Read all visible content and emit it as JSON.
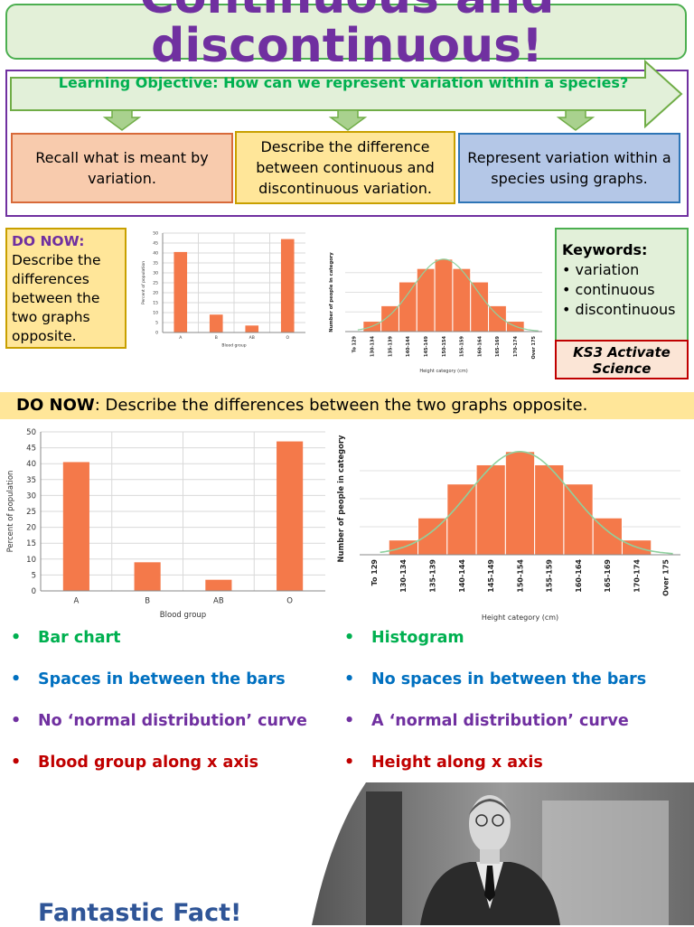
{
  "title": "Continuous and discontinuous!",
  "learning_objective": "Learning Objective: How can we represent variation within a species?",
  "objectives": [
    "Recall what is meant by variation.",
    "Describe the difference between continuous and discontinuous variation.",
    "Represent variation within a species using graphs."
  ],
  "do_now_small": {
    "label": "DO NOW",
    "colon": ":",
    "text": "Describe the differences between the two graphs opposite."
  },
  "keywords": {
    "heading": "Keywords:",
    "items": [
      "variation",
      "continuous",
      "discontinuous"
    ]
  },
  "ks3": "KS3 Activate Science",
  "banner": {
    "label": "DO NOW",
    "text": ": Describe the differences between the two graphs opposite."
  },
  "left_points": [
    "Bar chart",
    "Spaces in between the bars",
    "No ‘normal distribution’ curve",
    "Blood group along x axis"
  ],
  "right_points": [
    "Histogram",
    "No spaces in between the bars",
    "A ‘normal distribution’ curve",
    "Height along x axis"
  ],
  "bullet": "•",
  "fact": "Fantastic Fact!",
  "colors": {
    "green": "#00b050",
    "blue": "#0070c0",
    "purple": "#7030a0",
    "red": "#c00000",
    "bar": "#f4794a"
  },
  "chart_data": [
    {
      "type": "bar",
      "categories": [
        "A",
        "B",
        "AB",
        "O"
      ],
      "values": [
        40.5,
        9,
        3.5,
        47
      ],
      "xlabel": "Blood group",
      "ylabel": "Percent of population",
      "ylim": [
        0,
        50
      ],
      "yticks": [
        0,
        5,
        10,
        15,
        20,
        25,
        30,
        35,
        40,
        45,
        50
      ],
      "grid": true
    },
    {
      "type": "bar",
      "categories": [
        "To 129",
        "130-134",
        "135-139",
        "140-144",
        "145-149",
        "150-154",
        "155-159",
        "160-164",
        "165-169",
        "170-174",
        "Over 175"
      ],
      "values": [
        0,
        1,
        2.5,
        4.8,
        6.1,
        7,
        6.1,
        4.8,
        2.5,
        1,
        0
      ],
      "xlabel": "Height category (cm)",
      "ylabel": "Number of people in category",
      "grid": true,
      "curve": "normal distribution"
    }
  ]
}
